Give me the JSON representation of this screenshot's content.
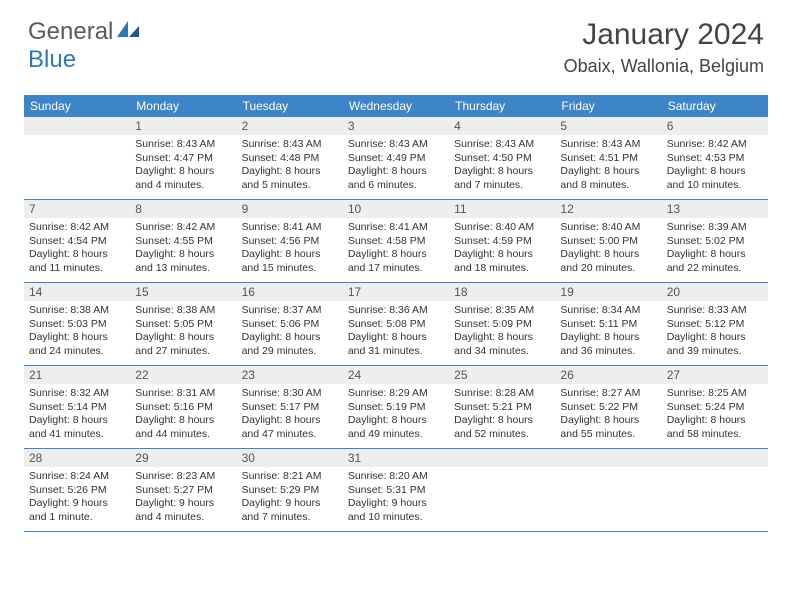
{
  "brand": {
    "word1": "General",
    "word2": "Blue"
  },
  "title": "January 2024",
  "location": "Obaix, Wallonia, Belgium",
  "colors": {
    "header_bar": "#3d85c6",
    "header_text": "#ffffff",
    "daynum_bg": "#eeeeee",
    "week_divider": "#3d85c6",
    "body_text": "#333333",
    "title_text": "#444444",
    "logo_gray": "#5a5a5a",
    "logo_blue": "#2e77b8"
  },
  "day_names": [
    "Sunday",
    "Monday",
    "Tuesday",
    "Wednesday",
    "Thursday",
    "Friday",
    "Saturday"
  ],
  "weeks": [
    [
      {
        "n": "",
        "sunrise": "",
        "sunset": "",
        "daylight": ""
      },
      {
        "n": "1",
        "sunrise": "Sunrise: 8:43 AM",
        "sunset": "Sunset: 4:47 PM",
        "daylight": "Daylight: 8 hours and 4 minutes."
      },
      {
        "n": "2",
        "sunrise": "Sunrise: 8:43 AM",
        "sunset": "Sunset: 4:48 PM",
        "daylight": "Daylight: 8 hours and 5 minutes."
      },
      {
        "n": "3",
        "sunrise": "Sunrise: 8:43 AM",
        "sunset": "Sunset: 4:49 PM",
        "daylight": "Daylight: 8 hours and 6 minutes."
      },
      {
        "n": "4",
        "sunrise": "Sunrise: 8:43 AM",
        "sunset": "Sunset: 4:50 PM",
        "daylight": "Daylight: 8 hours and 7 minutes."
      },
      {
        "n": "5",
        "sunrise": "Sunrise: 8:43 AM",
        "sunset": "Sunset: 4:51 PM",
        "daylight": "Daylight: 8 hours and 8 minutes."
      },
      {
        "n": "6",
        "sunrise": "Sunrise: 8:42 AM",
        "sunset": "Sunset: 4:53 PM",
        "daylight": "Daylight: 8 hours and 10 minutes."
      }
    ],
    [
      {
        "n": "7",
        "sunrise": "Sunrise: 8:42 AM",
        "sunset": "Sunset: 4:54 PM",
        "daylight": "Daylight: 8 hours and 11 minutes."
      },
      {
        "n": "8",
        "sunrise": "Sunrise: 8:42 AM",
        "sunset": "Sunset: 4:55 PM",
        "daylight": "Daylight: 8 hours and 13 minutes."
      },
      {
        "n": "9",
        "sunrise": "Sunrise: 8:41 AM",
        "sunset": "Sunset: 4:56 PM",
        "daylight": "Daylight: 8 hours and 15 minutes."
      },
      {
        "n": "10",
        "sunrise": "Sunrise: 8:41 AM",
        "sunset": "Sunset: 4:58 PM",
        "daylight": "Daylight: 8 hours and 17 minutes."
      },
      {
        "n": "11",
        "sunrise": "Sunrise: 8:40 AM",
        "sunset": "Sunset: 4:59 PM",
        "daylight": "Daylight: 8 hours and 18 minutes."
      },
      {
        "n": "12",
        "sunrise": "Sunrise: 8:40 AM",
        "sunset": "Sunset: 5:00 PM",
        "daylight": "Daylight: 8 hours and 20 minutes."
      },
      {
        "n": "13",
        "sunrise": "Sunrise: 8:39 AM",
        "sunset": "Sunset: 5:02 PM",
        "daylight": "Daylight: 8 hours and 22 minutes."
      }
    ],
    [
      {
        "n": "14",
        "sunrise": "Sunrise: 8:38 AM",
        "sunset": "Sunset: 5:03 PM",
        "daylight": "Daylight: 8 hours and 24 minutes."
      },
      {
        "n": "15",
        "sunrise": "Sunrise: 8:38 AM",
        "sunset": "Sunset: 5:05 PM",
        "daylight": "Daylight: 8 hours and 27 minutes."
      },
      {
        "n": "16",
        "sunrise": "Sunrise: 8:37 AM",
        "sunset": "Sunset: 5:06 PM",
        "daylight": "Daylight: 8 hours and 29 minutes."
      },
      {
        "n": "17",
        "sunrise": "Sunrise: 8:36 AM",
        "sunset": "Sunset: 5:08 PM",
        "daylight": "Daylight: 8 hours and 31 minutes."
      },
      {
        "n": "18",
        "sunrise": "Sunrise: 8:35 AM",
        "sunset": "Sunset: 5:09 PM",
        "daylight": "Daylight: 8 hours and 34 minutes."
      },
      {
        "n": "19",
        "sunrise": "Sunrise: 8:34 AM",
        "sunset": "Sunset: 5:11 PM",
        "daylight": "Daylight: 8 hours and 36 minutes."
      },
      {
        "n": "20",
        "sunrise": "Sunrise: 8:33 AM",
        "sunset": "Sunset: 5:12 PM",
        "daylight": "Daylight: 8 hours and 39 minutes."
      }
    ],
    [
      {
        "n": "21",
        "sunrise": "Sunrise: 8:32 AM",
        "sunset": "Sunset: 5:14 PM",
        "daylight": "Daylight: 8 hours and 41 minutes."
      },
      {
        "n": "22",
        "sunrise": "Sunrise: 8:31 AM",
        "sunset": "Sunset: 5:16 PM",
        "daylight": "Daylight: 8 hours and 44 minutes."
      },
      {
        "n": "23",
        "sunrise": "Sunrise: 8:30 AM",
        "sunset": "Sunset: 5:17 PM",
        "daylight": "Daylight: 8 hours and 47 minutes."
      },
      {
        "n": "24",
        "sunrise": "Sunrise: 8:29 AM",
        "sunset": "Sunset: 5:19 PM",
        "daylight": "Daylight: 8 hours and 49 minutes."
      },
      {
        "n": "25",
        "sunrise": "Sunrise: 8:28 AM",
        "sunset": "Sunset: 5:21 PM",
        "daylight": "Daylight: 8 hours and 52 minutes."
      },
      {
        "n": "26",
        "sunrise": "Sunrise: 8:27 AM",
        "sunset": "Sunset: 5:22 PM",
        "daylight": "Daylight: 8 hours and 55 minutes."
      },
      {
        "n": "27",
        "sunrise": "Sunrise: 8:25 AM",
        "sunset": "Sunset: 5:24 PM",
        "daylight": "Daylight: 8 hours and 58 minutes."
      }
    ],
    [
      {
        "n": "28",
        "sunrise": "Sunrise: 8:24 AM",
        "sunset": "Sunset: 5:26 PM",
        "daylight": "Daylight: 9 hours and 1 minute."
      },
      {
        "n": "29",
        "sunrise": "Sunrise: 8:23 AM",
        "sunset": "Sunset: 5:27 PM",
        "daylight": "Daylight: 9 hours and 4 minutes."
      },
      {
        "n": "30",
        "sunrise": "Sunrise: 8:21 AM",
        "sunset": "Sunset: 5:29 PM",
        "daylight": "Daylight: 9 hours and 7 minutes."
      },
      {
        "n": "31",
        "sunrise": "Sunrise: 8:20 AM",
        "sunset": "Sunset: 5:31 PM",
        "daylight": "Daylight: 9 hours and 10 minutes."
      },
      {
        "n": "",
        "sunrise": "",
        "sunset": "",
        "daylight": ""
      },
      {
        "n": "",
        "sunrise": "",
        "sunset": "",
        "daylight": ""
      },
      {
        "n": "",
        "sunrise": "",
        "sunset": "",
        "daylight": ""
      }
    ]
  ]
}
